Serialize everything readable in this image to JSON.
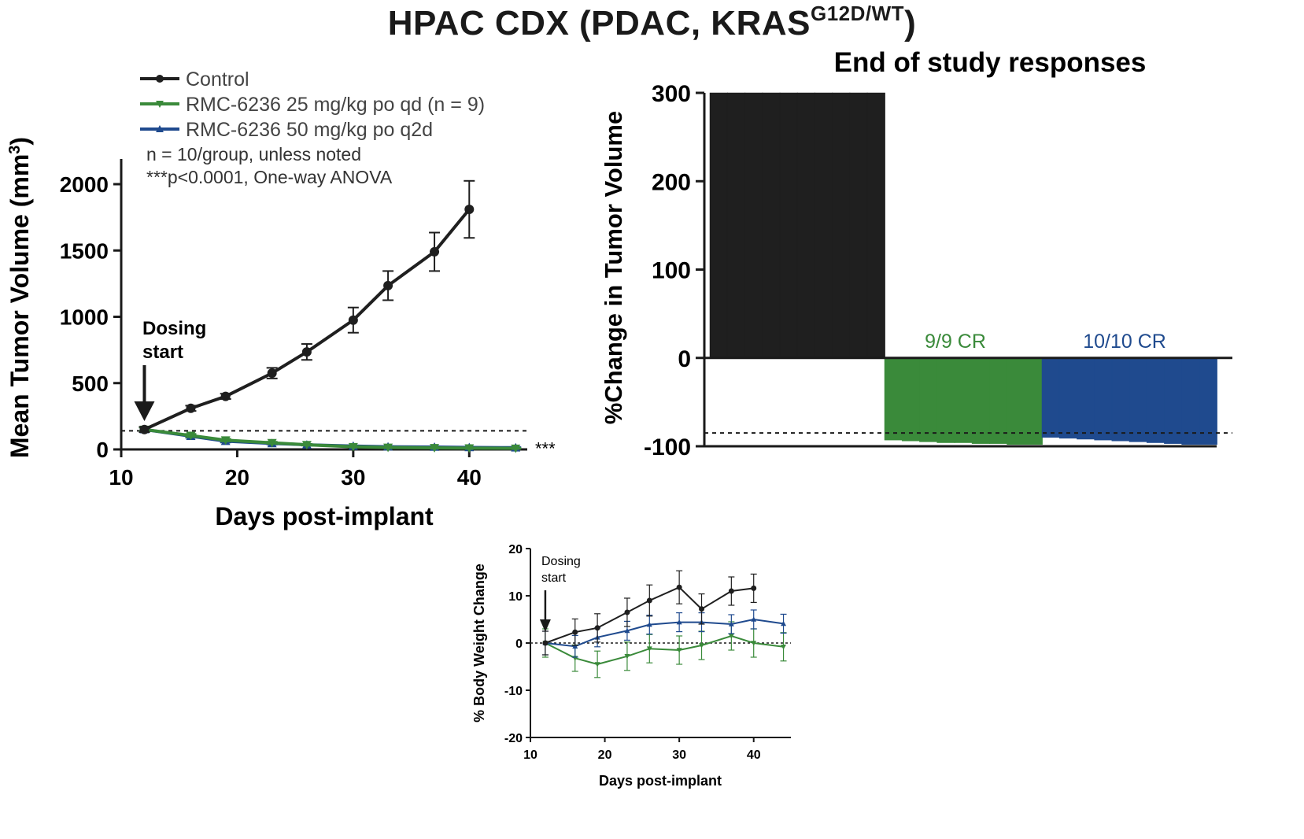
{
  "figure": {
    "title_main": "HPAC CDX (PDAC, KRAS",
    "title_sup": "G12D/WT",
    "title_close": ")"
  },
  "colors": {
    "control": "#1f1f1f",
    "dose25": "#3a8a3a",
    "dose50": "#1f4a8e"
  },
  "chart_data": [
    {
      "type": "line",
      "title": "",
      "xlabel": "Days post-implant",
      "ylabel": "Mean Tumor Volume (mm3)",
      "xlim": [
        10,
        45
      ],
      "ylim": [
        0,
        2000
      ],
      "xticks": [
        10,
        20,
        30,
        40
      ],
      "yticks": [
        0,
        500,
        1000,
        1500,
        2000
      ],
      "legend_position": "top-left",
      "reference_line": 140,
      "annotations": {
        "note1": "n = 10/group, unless noted",
        "note2": "***p<0.0001, One-way ANOVA",
        "dosing_line1": "Dosing",
        "dosing_line2": "start",
        "dosing_day": 12,
        "significance": "***"
      },
      "series": [
        {
          "name": "Control",
          "color_key": "control",
          "x": [
            12,
            16,
            19,
            23,
            26,
            30,
            33,
            37,
            40
          ],
          "y": [
            150,
            310,
            400,
            575,
            735,
            975,
            1235,
            1490,
            1810
          ],
          "err": [
            20,
            20,
            20,
            40,
            60,
            95,
            110,
            145,
            215
          ]
        },
        {
          "name": "RMC-6236 25 mg/kg po qd (n = 9)",
          "color_key": "dose25",
          "x": [
            12,
            16,
            19,
            23,
            26,
            30,
            33,
            37,
            40,
            44
          ],
          "y": [
            150,
            105,
            70,
            50,
            35,
            20,
            15,
            12,
            10,
            8
          ],
          "err": [
            15,
            12,
            10,
            8,
            6,
            5,
            5,
            4,
            4,
            4
          ]
        },
        {
          "name": "RMC-6236 50 mg/kg po q2d",
          "color_key": "dose50",
          "x": [
            12,
            16,
            19,
            23,
            26,
            30,
            33,
            37,
            40,
            44
          ],
          "y": [
            150,
            100,
            62,
            45,
            35,
            25,
            20,
            18,
            15,
            13
          ],
          "err": [
            15,
            12,
            10,
            8,
            6,
            5,
            5,
            4,
            4,
            4
          ]
        }
      ]
    },
    {
      "type": "bar",
      "title": "End of study responses",
      "xlabel": "",
      "ylabel": "%Change in Tumor Volume",
      "ylim": [
        -100,
        300
      ],
      "yticks": [
        -100,
        0,
        100,
        200,
        300
      ],
      "reference_line": -85,
      "groups": [
        {
          "name": "Control",
          "color_key": "control",
          "values": [
            300,
            300,
            300,
            300,
            300,
            300,
            300,
            300,
            300,
            300
          ]
        },
        {
          "name": "RMC-6236 25 mg/kg po qd (n = 9)",
          "label": "9/9 CR",
          "color_key": "dose25",
          "values": [
            -93,
            -94,
            -95,
            -96,
            -96,
            -97,
            -97,
            -98,
            -98
          ]
        },
        {
          "name": "RMC-6236 50 mg/kg po q2d",
          "label": "10/10 CR",
          "color_key": "dose50",
          "values": [
            -90,
            -91,
            -92,
            -93,
            -94,
            -95,
            -96,
            -97,
            -98,
            -98
          ]
        }
      ]
    },
    {
      "type": "line",
      "title": "",
      "xlabel": "Days post-implant",
      "ylabel": "% Body Weight Change",
      "xlim": [
        10,
        45
      ],
      "ylim": [
        -20,
        20
      ],
      "xticks": [
        10,
        20,
        30,
        40
      ],
      "yticks": [
        -20,
        -10,
        0,
        10,
        20
      ],
      "reference_line": 0,
      "annotations": {
        "dosing_line1": "Dosing",
        "dosing_line2": "start",
        "dosing_day": 12
      },
      "series": [
        {
          "name": "Control",
          "color_key": "control",
          "x": [
            12,
            16,
            19,
            23,
            26,
            30,
            33,
            37,
            40
          ],
          "y": [
            0,
            2.3,
            3.2,
            6.5,
            9.0,
            11.8,
            7.2,
            11.0,
            11.6
          ],
          "err": [
            2.5,
            2.8,
            3.0,
            3.0,
            3.3,
            3.5,
            3.2,
            3.0,
            3.0
          ]
        },
        {
          "name": "RMC-6236 25 mg/kg po qd (n = 9)",
          "color_key": "dose25",
          "x": [
            12,
            16,
            19,
            23,
            26,
            30,
            33,
            37,
            40,
            44
          ],
          "y": [
            0,
            -3.2,
            -4.5,
            -2.8,
            -1.2,
            -1.5,
            -0.5,
            1.5,
            0,
            -0.8
          ],
          "err": [
            3.0,
            2.8,
            2.8,
            3.0,
            3.0,
            3.0,
            3.0,
            3.0,
            3.0,
            3.0
          ]
        },
        {
          "name": "RMC-6236 50 mg/kg po q2d",
          "color_key": "dose50",
          "x": [
            12,
            16,
            19,
            23,
            26,
            30,
            33,
            37,
            40,
            44
          ],
          "y": [
            0,
            -0.7,
            1.2,
            2.6,
            3.9,
            4.4,
            4.4,
            4.0,
            5.0,
            4.1
          ],
          "err": [
            2.5,
            2.3,
            2.0,
            2.0,
            2.0,
            2.0,
            2.0,
            2.0,
            2.0,
            2.0
          ]
        }
      ]
    }
  ]
}
